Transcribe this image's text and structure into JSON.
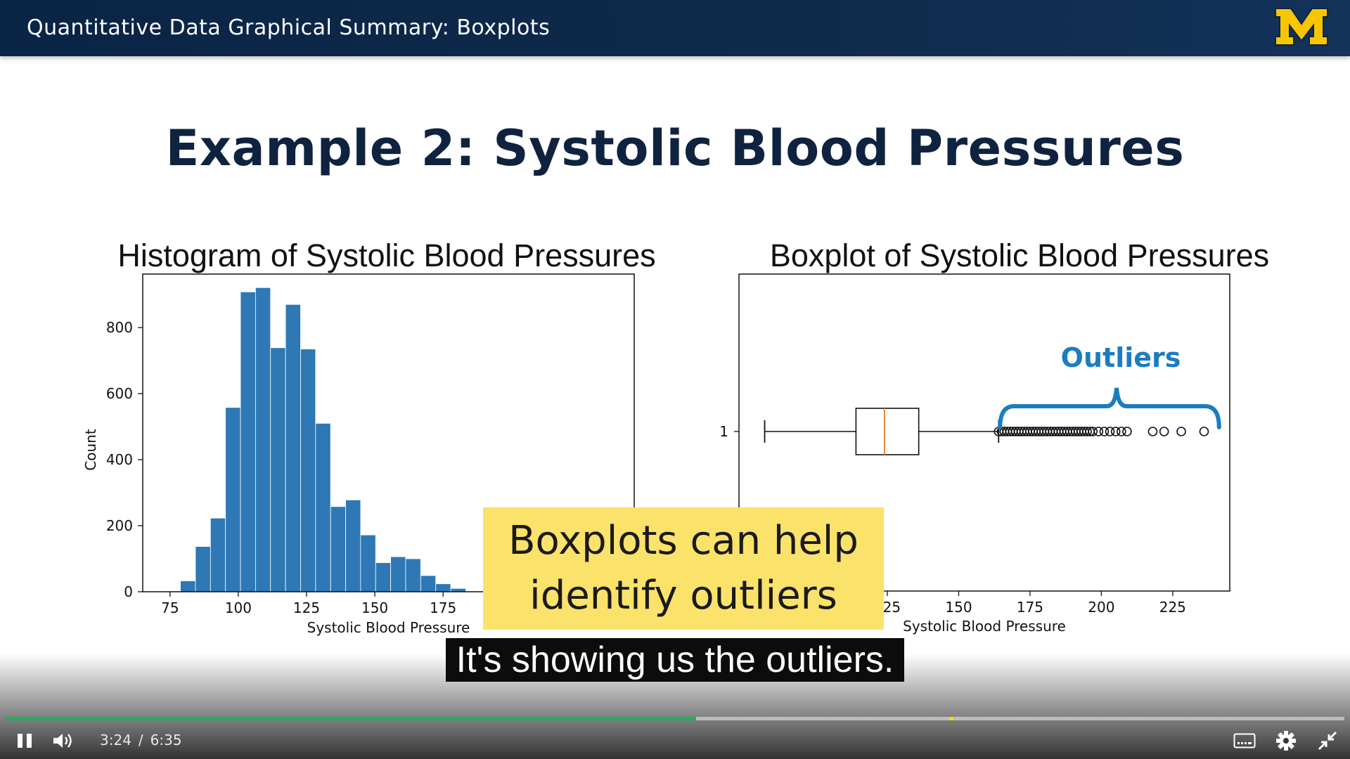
{
  "header": {
    "title": "Quantitative Data Graphical Summary: Boxplots"
  },
  "slide": {
    "title": "Example 2: Systolic Blood Pressures",
    "callout": {
      "line1": "Boxplots can help",
      "line2": "identify outliers"
    }
  },
  "chart_data": [
    {
      "type": "bar",
      "title": "Histogram of Systolic Blood Pressures",
      "xlabel": "Systolic Blood Pressure",
      "ylabel": "Count",
      "xlim": [
        65,
        245
      ],
      "ylim": [
        0,
        962
      ],
      "xticks": [
        "75",
        "100",
        "125",
        "150",
        "175"
      ],
      "yticks": [
        "0",
        "200",
        "400",
        "600",
        "800"
      ],
      "bins": [
        {
          "x0": 78.8,
          "x1": 84.3,
          "value": 33
        },
        {
          "x0": 84.3,
          "x1": 89.8,
          "value": 137
        },
        {
          "x0": 89.8,
          "x1": 95.3,
          "value": 223
        },
        {
          "x0": 95.3,
          "x1": 100.8,
          "value": 558
        },
        {
          "x0": 100.8,
          "x1": 106.3,
          "value": 908
        },
        {
          "x0": 106.3,
          "x1": 111.8,
          "value": 921
        },
        {
          "x0": 111.8,
          "x1": 117.3,
          "value": 739
        },
        {
          "x0": 117.3,
          "x1": 122.8,
          "value": 870
        },
        {
          "x0": 122.8,
          "x1": 128.3,
          "value": 735
        },
        {
          "x0": 128.3,
          "x1": 133.8,
          "value": 510
        },
        {
          "x0": 133.8,
          "x1": 139.3,
          "value": 258
        },
        {
          "x0": 139.3,
          "x1": 144.8,
          "value": 278
        },
        {
          "x0": 144.8,
          "x1": 150.3,
          "value": 172
        },
        {
          "x0": 150.3,
          "x1": 155.8,
          "value": 88
        },
        {
          "x0": 155.8,
          "x1": 161.3,
          "value": 106
        },
        {
          "x0": 161.3,
          "x1": 166.8,
          "value": 100
        },
        {
          "x0": 166.8,
          "x1": 172.3,
          "value": 49
        },
        {
          "x0": 172.3,
          "x1": 177.8,
          "value": 24
        },
        {
          "x0": 177.8,
          "x1": 183.3,
          "value": 10
        }
      ],
      "color": "#2e78b5"
    },
    {
      "type": "boxplot",
      "title": "Boxplot of Systolic Blood Pressures",
      "xlabel": "Systolic Blood Pressure",
      "xlim": [
        73,
        245
      ],
      "xticks": [
        "125",
        "150",
        "175",
        "200",
        "225"
      ],
      "yticks": [
        "1"
      ],
      "whisker_low": 82,
      "q1": 114,
      "median": 124,
      "q3": 136,
      "whisker_high": 164,
      "outliers": [
        164,
        165,
        166,
        167,
        168,
        169,
        170,
        171,
        172,
        173,
        174,
        175,
        176,
        177,
        178,
        179,
        180,
        181,
        182,
        183,
        184,
        185,
        186,
        187,
        188,
        189,
        190,
        191,
        192,
        193,
        194,
        195,
        196,
        197,
        199,
        201,
        203,
        205,
        207,
        209,
        218,
        222,
        228,
        236
      ],
      "median_color": "#e08a3c",
      "annotation": {
        "text": "Outliers",
        "color": "#1b7dbf",
        "from": 164,
        "to": 241
      }
    }
  ],
  "player": {
    "caption": "It's showing us the outliers.",
    "current_time": "3:24",
    "time_separator": "/",
    "duration": "6:35",
    "progress": 0.516,
    "marker_position": 0.705,
    "progress_color": "#1fae5a",
    "icons": [
      "pause-icon",
      "volume-icon",
      "closed-captions-icon",
      "settings-gear-icon",
      "exit-fullscreen-icon"
    ]
  }
}
